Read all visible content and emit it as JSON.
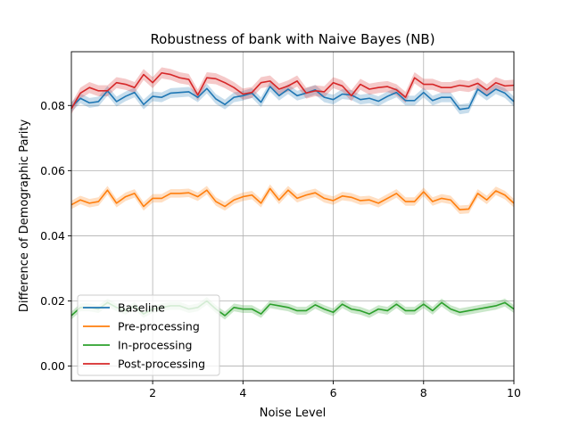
{
  "chart_data": {
    "type": "line",
    "title": "Robustness of bank with Naive Bayes (NB)",
    "xlabel": "Noise Level",
    "ylabel": "Difference of Demographic Parity",
    "xlim": [
      0.2,
      10
    ],
    "ylim": [
      -0.0045,
      0.0965
    ],
    "xticks": [
      2,
      4,
      6,
      8,
      10
    ],
    "yticks": [
      0.0,
      0.02,
      0.04,
      0.06,
      0.08
    ],
    "ytick_labels": [
      "0.00",
      "0.02",
      "0.04",
      "0.06",
      "0.08"
    ],
    "grid": true,
    "legend_position": "lower-left",
    "x": [
      0.2,
      0.4,
      0.6,
      0.8,
      1.0,
      1.2,
      1.4,
      1.6,
      1.8,
      2.0,
      2.2,
      2.4,
      2.6,
      2.8,
      3.0,
      3.2,
      3.4,
      3.6,
      3.8,
      4.0,
      4.2,
      4.4,
      4.6,
      4.8,
      5.0,
      5.2,
      5.4,
      5.6,
      5.8,
      6.0,
      6.2,
      6.4,
      6.6,
      6.8,
      7.0,
      7.2,
      7.4,
      7.6,
      7.8,
      8.0,
      8.2,
      8.4,
      8.6,
      8.8,
      9.0,
      9.2,
      9.4,
      9.6,
      9.8,
      10.0
    ],
    "series": [
      {
        "name": "Baseline",
        "color": "#1f77b4",
        "band": 0.0015,
        "values": [
          0.0795,
          0.0822,
          0.0808,
          0.0812,
          0.0845,
          0.0812,
          0.0828,
          0.084,
          0.0803,
          0.0828,
          0.0825,
          0.0838,
          0.084,
          0.0842,
          0.0825,
          0.0852,
          0.082,
          0.0803,
          0.0825,
          0.083,
          0.0838,
          0.081,
          0.0858,
          0.083,
          0.085,
          0.083,
          0.0838,
          0.0848,
          0.0825,
          0.0818,
          0.0835,
          0.0832,
          0.0818,
          0.0822,
          0.0813,
          0.0828,
          0.084,
          0.0815,
          0.0815,
          0.084,
          0.0815,
          0.0825,
          0.0825,
          0.0788,
          0.0792,
          0.085,
          0.083,
          0.085,
          0.0838,
          0.0812
        ]
      },
      {
        "name": "Pre-processing",
        "color": "#ff7f0e",
        "band": 0.0013,
        "values": [
          0.0495,
          0.051,
          0.05,
          0.0505,
          0.054,
          0.05,
          0.052,
          0.053,
          0.049,
          0.0515,
          0.0515,
          0.053,
          0.053,
          0.0532,
          0.052,
          0.054,
          0.0505,
          0.049,
          0.051,
          0.052,
          0.0525,
          0.05,
          0.0545,
          0.051,
          0.054,
          0.0515,
          0.0525,
          0.0532,
          0.0515,
          0.0508,
          0.0522,
          0.0518,
          0.0508,
          0.051,
          0.05,
          0.0515,
          0.053,
          0.0505,
          0.0505,
          0.0535,
          0.0505,
          0.0515,
          0.051,
          0.048,
          0.0482,
          0.053,
          0.051,
          0.0538,
          0.0525,
          0.05
        ]
      },
      {
        "name": "In-processing",
        "color": "#2ca02c",
        "band": 0.0012,
        "values": [
          0.0155,
          0.018,
          0.018,
          0.0175,
          0.0195,
          0.018,
          0.017,
          0.0185,
          0.016,
          0.0175,
          0.018,
          0.0185,
          0.0185,
          0.0175,
          0.018,
          0.02,
          0.0175,
          0.0155,
          0.018,
          0.0175,
          0.0175,
          0.016,
          0.019,
          0.0185,
          0.018,
          0.017,
          0.017,
          0.0188,
          0.0175,
          0.0165,
          0.019,
          0.0175,
          0.017,
          0.016,
          0.0175,
          0.017,
          0.019,
          0.017,
          0.017,
          0.019,
          0.017,
          0.0195,
          0.0175,
          0.0165,
          0.017,
          0.0175,
          0.018,
          0.0185,
          0.0195,
          0.0175
        ]
      },
      {
        "name": "Post-processing",
        "color": "#d62728",
        "band": 0.0017,
        "values": [
          0.079,
          0.0838,
          0.0855,
          0.0845,
          0.0845,
          0.087,
          0.0865,
          0.0855,
          0.0895,
          0.087,
          0.09,
          0.0895,
          0.0885,
          0.088,
          0.0832,
          0.0885,
          0.0882,
          0.087,
          0.0855,
          0.0835,
          0.084,
          0.087,
          0.0875,
          0.085,
          0.086,
          0.0875,
          0.0838,
          0.0845,
          0.0842,
          0.087,
          0.086,
          0.083,
          0.0865,
          0.085,
          0.0855,
          0.0858,
          0.0848,
          0.0825,
          0.0885,
          0.0865,
          0.0865,
          0.0855,
          0.0855,
          0.0862,
          0.0858,
          0.0868,
          0.0848,
          0.087,
          0.086,
          0.0862
        ]
      }
    ]
  }
}
